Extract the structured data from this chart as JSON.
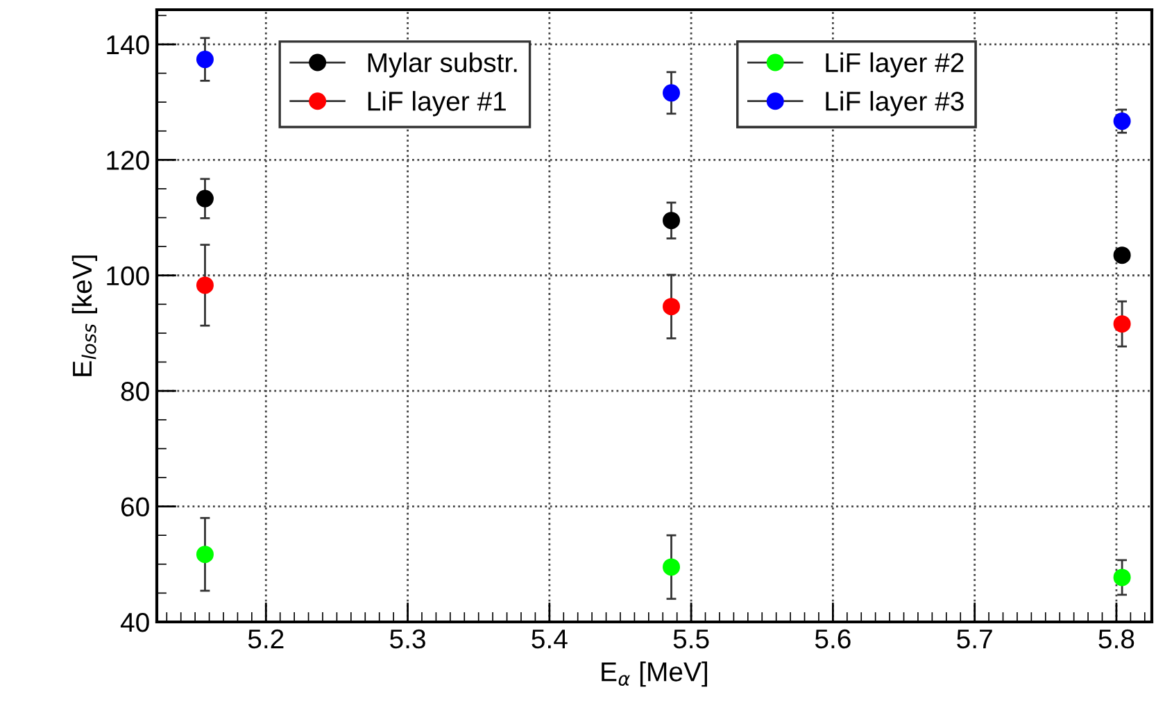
{
  "chart_data": {
    "type": "scatter",
    "xlabel": "E$_{α}$ [MeV]",
    "ylabel": "E$_{loss}$ [keV]",
    "x": [
      5.157,
      5.486,
      5.804
    ],
    "series": [
      {
        "name": "Mylar substr.",
        "color": "#000000",
        "values": [
          113.3,
          109.5,
          103.5
        ],
        "errors": [
          3.4,
          3.1,
          1
        ]
      },
      {
        "name": "LiF layer #1",
        "color": "#ff0000",
        "values": [
          98.3,
          94.6,
          91.6
        ],
        "errors": [
          7,
          5.5,
          3.9
        ]
      },
      {
        "name": "LiF layer #2",
        "color": "#00ff00",
        "values": [
          51.7,
          49.5,
          47.7
        ],
        "errors": [
          6.3,
          5.5,
          3
        ]
      },
      {
        "name": "LiF layer #3",
        "color": "#0000ff",
        "values": [
          137.4,
          131.6,
          126.7
        ],
        "errors": [
          3.7,
          3.6,
          2
        ]
      }
    ],
    "xlim": [
      5.123,
      5.825
    ],
    "ylim": [
      40,
      146
    ],
    "xticks": [
      5.2,
      5.3,
      5.4,
      5.5,
      5.6,
      5.7,
      5.8
    ],
    "yticks": [
      40,
      60,
      80,
      100,
      120,
      140
    ],
    "grid": true,
    "legend": "top",
    "marker": "circle"
  }
}
